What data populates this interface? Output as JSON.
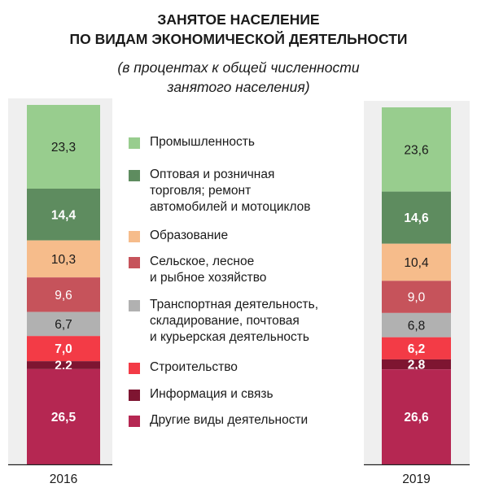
{
  "title_line1": "ЗАНЯТОЕ НАСЕЛЕНИЕ",
  "title_line2": "ПО ВИДАМ ЭКОНОМИЧЕСКОЙ ДЕЯТЕЛЬНОСТИ",
  "subtitle_line1": "(в процентах к общей численности",
  "subtitle_line2": "занятого населения)",
  "chart_data": {
    "type": "bar",
    "stacked": true,
    "orientation": "vertical",
    "categories": [
      "2016",
      "2019"
    ],
    "ylim": [
      0,
      100
    ],
    "grid": false,
    "legend_position": "center",
    "series": [
      {
        "name": "Промышленность",
        "color": "#98cd8e",
        "values": [
          23.3,
          23.6
        ],
        "labels": [
          "23,3",
          "23,6"
        ]
      },
      {
        "name": "Оптовая и розничная\nторговля; ремонт\nавтомобилей и мотоциклов",
        "color": "#5e8c5f",
        "values": [
          14.4,
          14.6
        ],
        "labels": [
          "14,4",
          "14,6"
        ]
      },
      {
        "name": "Образование",
        "color": "#f6bc8b",
        "values": [
          10.3,
          10.4
        ],
        "labels": [
          "10,3",
          "10,4"
        ]
      },
      {
        "name": "Сельское, лесное\nи рыбное хозяйство",
        "color": "#c6535b",
        "values": [
          9.6,
          9.0
        ],
        "labels": [
          "9,6",
          "9,0"
        ]
      },
      {
        "name": "Транспортная деятельность,\nскладирование, почтовая\nи курьерская деятельность",
        "color": "#b1b1b1",
        "values": [
          6.7,
          6.8
        ],
        "labels": [
          "6,7",
          "6,8"
        ]
      },
      {
        "name": "Строительство",
        "color": "#f33b46",
        "values": [
          7.0,
          6.2
        ],
        "labels": [
          "7,0",
          "6,2"
        ]
      },
      {
        "name": "Информация и связь",
        "color": "#7e1531",
        "values": [
          2.2,
          2.8
        ],
        "labels": [
          "2,2",
          "2,8"
        ]
      },
      {
        "name": "Другие виды деятельности",
        "color": "#b52752",
        "values": [
          26.5,
          26.6
        ],
        "labels": [
          "26,5",
          "26,6"
        ]
      }
    ]
  }
}
